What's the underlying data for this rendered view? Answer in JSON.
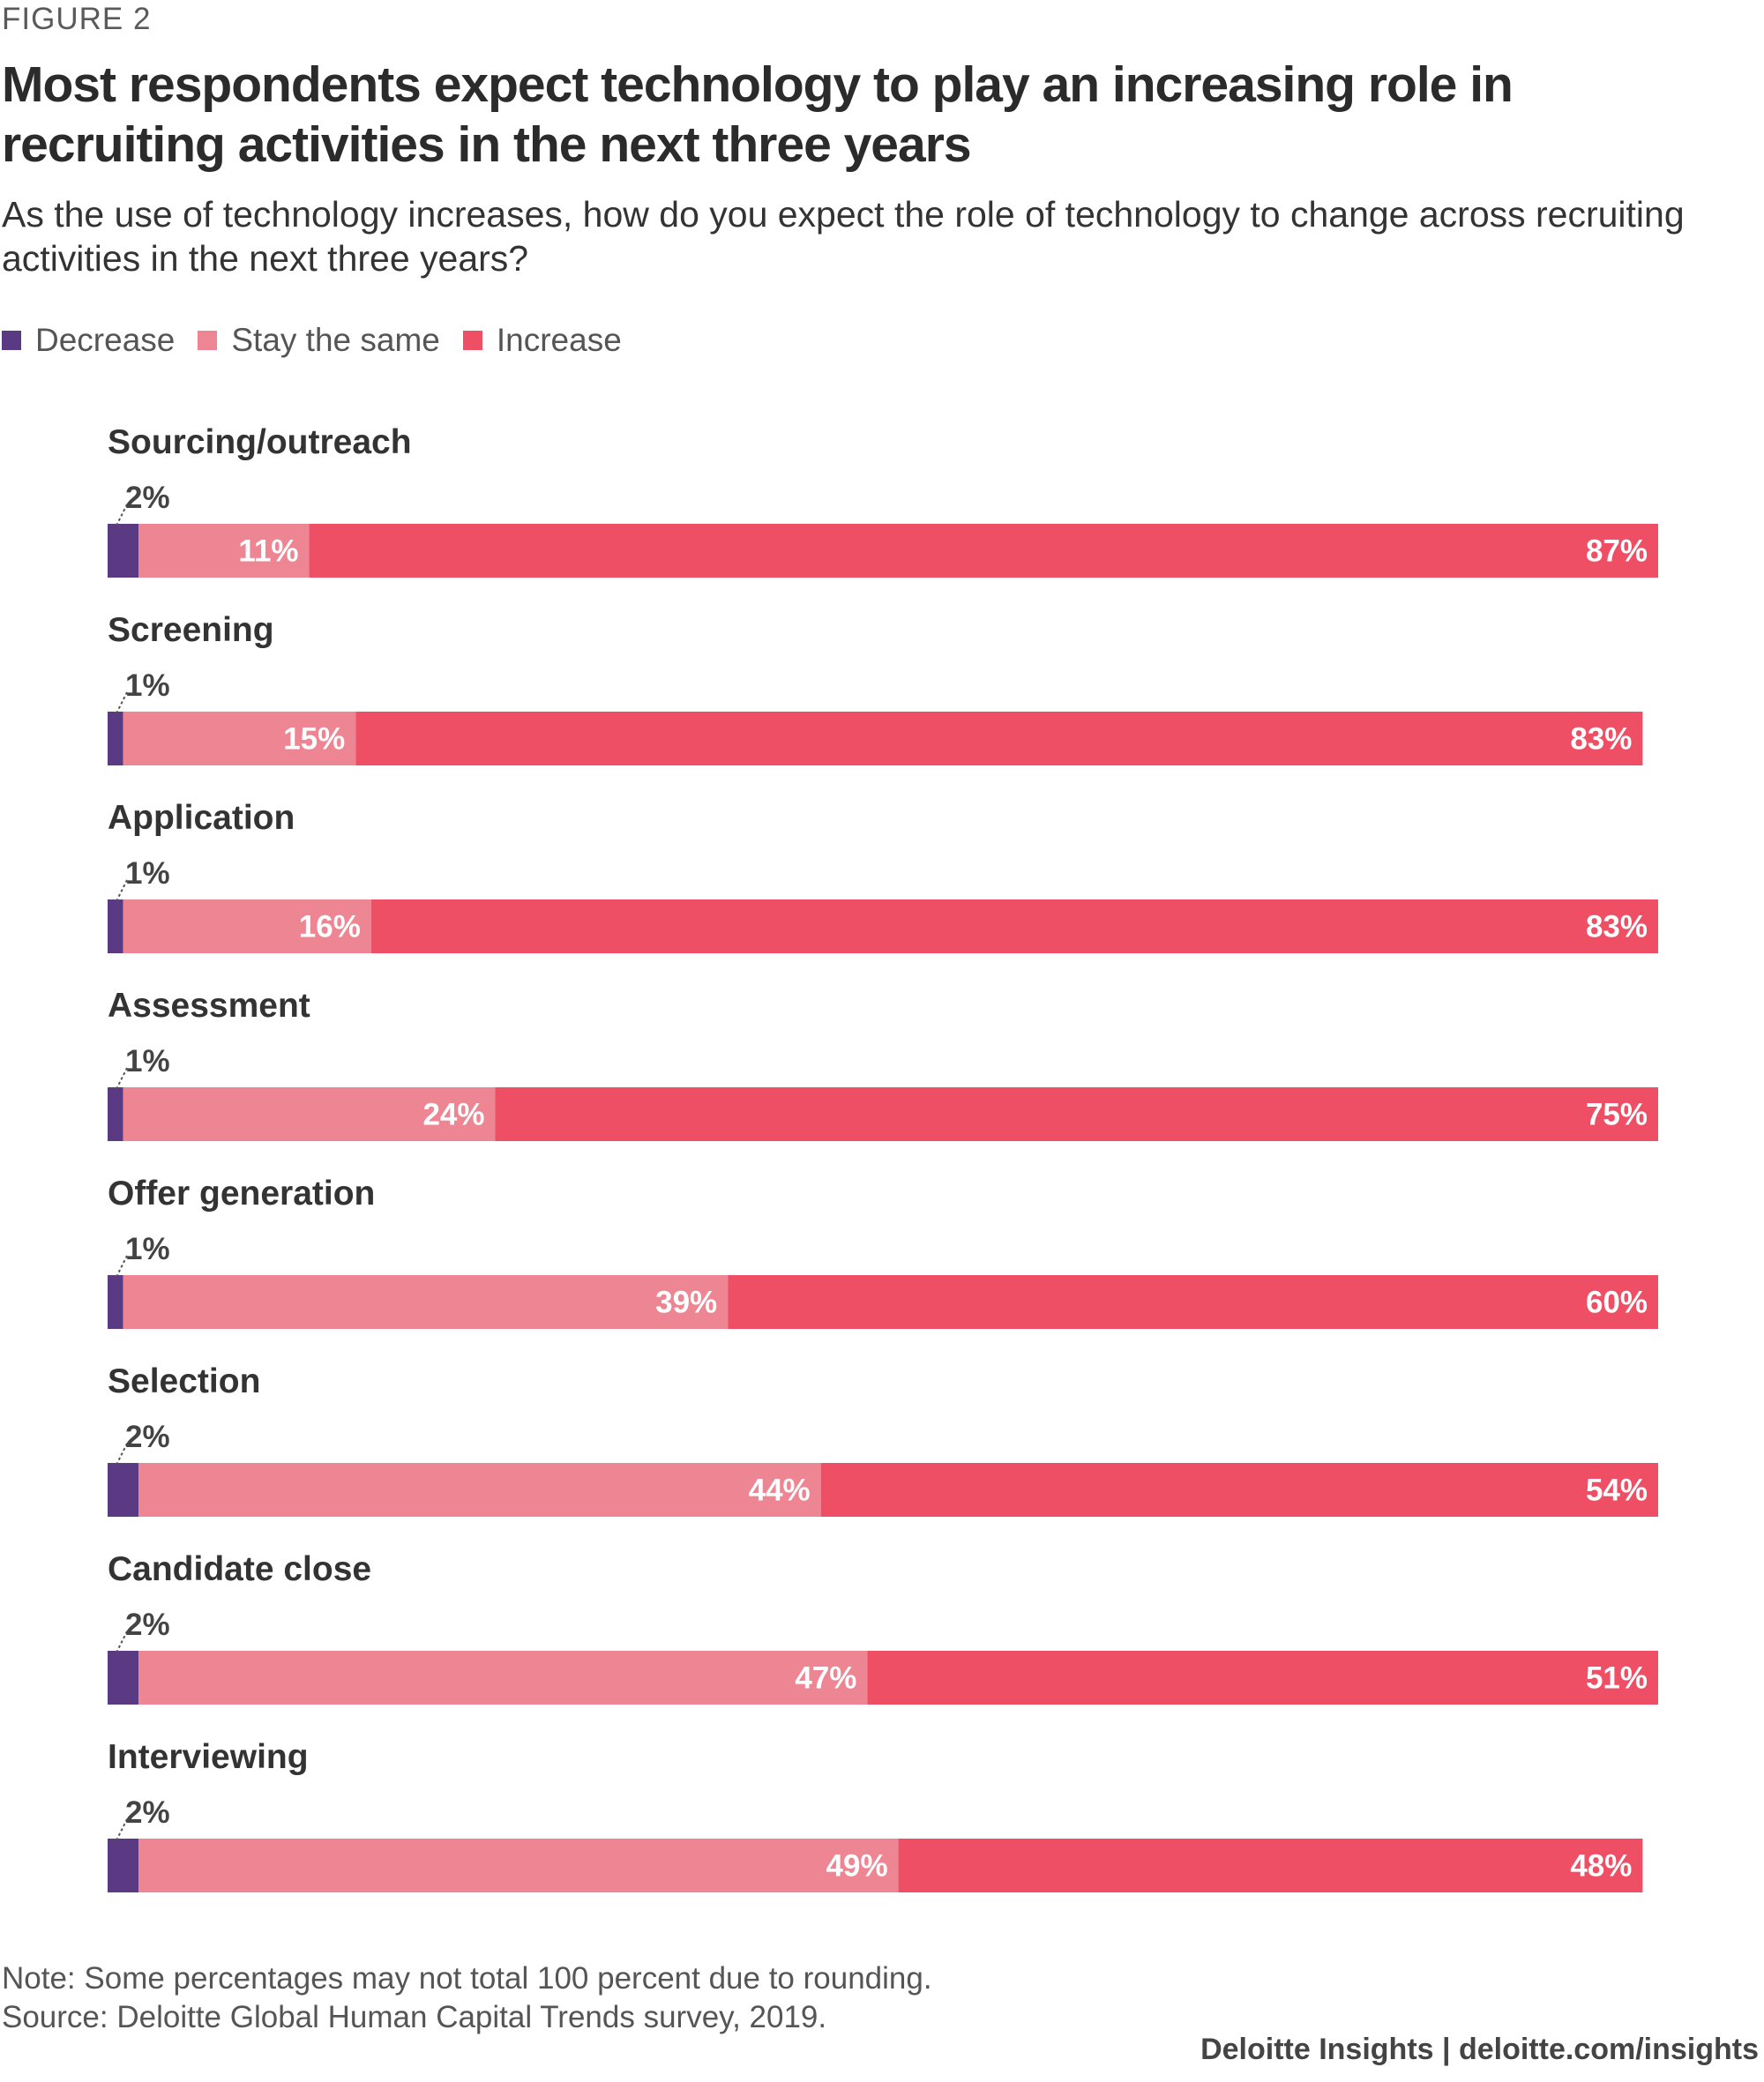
{
  "figure_label": "FIGURE 2",
  "title": "Most respondents expect technology to play an increasing role in recruiting activities in the next three years",
  "subtitle": "As the use of technology increases, how do you expect the role of technology to change across recruiting activities in the next three years?",
  "legend": [
    {
      "label": "Decrease",
      "color": "#5b3a84"
    },
    {
      "label": "Stay the same",
      "color": "#ee8593"
    },
    {
      "label": "Increase",
      "color": "#ef4f65"
    }
  ],
  "chart_data": {
    "type": "bar",
    "orientation": "horizontal",
    "stacked": true,
    "categories": [
      "Sourcing/outreach",
      "Screening",
      "Application",
      "Assessment",
      "Offer generation",
      "Selection",
      "Candidate close",
      "Interviewing"
    ],
    "series": [
      {
        "name": "Decrease",
        "values": [
          2,
          1,
          1,
          1,
          1,
          2,
          2,
          2
        ],
        "labels": [
          "2%",
          "1%",
          "1%",
          "1%",
          "1%",
          "2%",
          "2%",
          "2%"
        ],
        "color": "#5b3a84"
      },
      {
        "name": "Stay the same",
        "values": [
          11,
          15,
          16,
          24,
          39,
          44,
          47,
          49
        ],
        "labels": [
          "11%",
          "15%",
          "16%",
          "24%",
          "39%",
          "44%",
          "47%",
          "49%"
        ],
        "color": "#ee8593"
      },
      {
        "name": "Increase",
        "values": [
          87,
          83,
          83,
          75,
          60,
          54,
          51,
          48
        ],
        "labels": [
          "87%",
          "83%",
          "83%",
          "75%",
          "60%",
          "54%",
          "51%",
          "48%"
        ],
        "color": "#ef4f65"
      }
    ],
    "xlim": [
      0,
      100
    ],
    "legend_position": "top-left",
    "grid": false
  },
  "note": "Note: Some percentages may not total 100 percent due to rounding.",
  "source": "Source: Deloitte Global Human Capital Trends survey, 2019.",
  "credit": "Deloitte Insights | deloitte.com/insights"
}
